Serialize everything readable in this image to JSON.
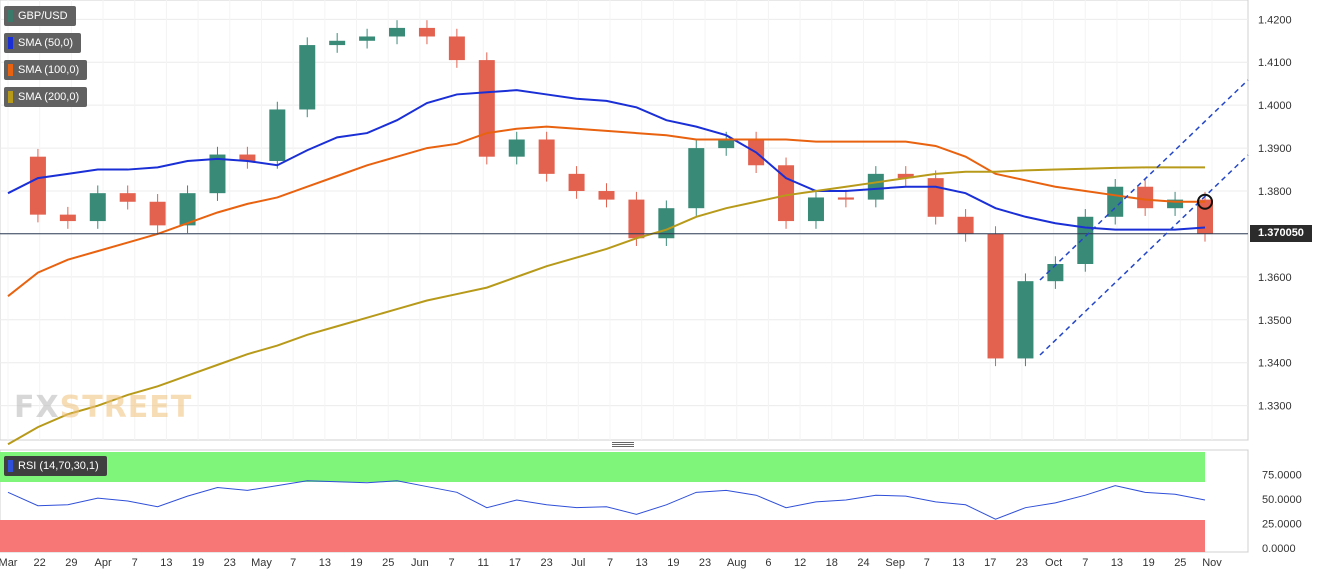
{
  "legends": [
    {
      "label": "GBP/USD",
      "color": "#3a7a6a"
    },
    {
      "label": "SMA (50,0)",
      "color": "#1a2fd6"
    },
    {
      "label": "SMA (100,0)",
      "color": "#e8620f"
    },
    {
      "label": "SMA (200,0)",
      "color": "#b89a1a"
    }
  ],
  "rsi_label": "RSI (14,70,30,1)",
  "logo": {
    "part1": "FX",
    "part2": "STREET"
  },
  "current_price": "1.370050",
  "colors": {
    "up": "#3a8a78",
    "down": "#e2614f",
    "sma50": "#1a2fd6",
    "sma100": "#e8620f",
    "sma200": "#b89a1a",
    "rsi_line": "#2f4fd8",
    "overbought_zone": "#7ff57a",
    "oversold_zone": "#f77777"
  },
  "chart_data": {
    "type": "line",
    "title": "GBP/USD",
    "y_ticks": [
      "1.4200",
      "1.4100",
      "1.4000",
      "1.3900",
      "1.3800",
      "1.3700",
      "1.3600",
      "1.3500",
      "1.3400",
      "1.3300"
    ],
    "x_ticks": [
      "Mar",
      "22",
      "29",
      "Apr",
      "7",
      "13",
      "19",
      "23",
      "May",
      "7",
      "13",
      "19",
      "25",
      "Jun",
      "7",
      "11",
      "17",
      "23",
      "Jul",
      "7",
      "13",
      "19",
      "23",
      "Aug",
      "6",
      "12",
      "18",
      "24",
      "Sep",
      "7",
      "13",
      "17",
      "23",
      "Oct",
      "7",
      "13",
      "19",
      "25",
      "Nov"
    ],
    "ylim": [
      1.322,
      1.4245
    ],
    "x": [
      "Mar 16",
      "Mar 22",
      "Mar 29",
      "Apr 1",
      "Apr 7",
      "Apr 13",
      "Apr 19",
      "Apr 23",
      "Apr 30",
      "May 7",
      "May 13",
      "May 19",
      "May 25",
      "Jun 1",
      "Jun 7",
      "Jun 11",
      "Jun 17",
      "Jun 23",
      "Jul 1",
      "Jul 7",
      "Jul 13",
      "Jul 19",
      "Jul 23",
      "Aug 2",
      "Aug 6",
      "Aug 12",
      "Aug 18",
      "Aug 24",
      "Sep 1",
      "Sep 7",
      "Sep 13",
      "Sep 17",
      "Sep 23",
      "Sep 29",
      "Oct 1",
      "Oct 7",
      "Oct 13",
      "Oct 19",
      "Oct 25",
      "Oct 28",
      "Oct 29"
    ],
    "close": [
      1.388,
      1.3745,
      1.373,
      1.3795,
      1.3775,
      1.372,
      1.3795,
      1.3885,
      1.387,
      1.399,
      1.414,
      1.415,
      1.416,
      1.418,
      1.416,
      1.4105,
      1.388,
      1.392,
      1.384,
      1.38,
      1.378,
      1.369,
      1.376,
      1.39,
      1.392,
      1.386,
      1.373,
      1.3785,
      1.378,
      1.384,
      1.383,
      1.374,
      1.37,
      1.341,
      1.359,
      1.363,
      1.374,
      1.381,
      1.376,
      1.378,
      1.37
    ],
    "series": [
      {
        "name": "SMA (50,0)",
        "values": [
          1.3795,
          1.383,
          1.384,
          1.385,
          1.385,
          1.3855,
          1.387,
          1.3875,
          1.387,
          1.386,
          1.3895,
          1.3925,
          1.3935,
          1.3965,
          1.4005,
          1.4025,
          1.403,
          1.4035,
          1.4025,
          1.4015,
          1.401,
          1.3995,
          1.3965,
          1.395,
          1.393,
          1.389,
          1.383,
          1.38,
          1.38,
          1.3805,
          1.381,
          1.381,
          1.3795,
          1.376,
          1.374,
          1.3725,
          1.3715,
          1.371,
          1.371,
          1.371,
          1.3715
        ]
      },
      {
        "name": "SMA (100,0)",
        "values": [
          1.3555,
          1.361,
          1.364,
          1.366,
          1.368,
          1.37,
          1.3725,
          1.375,
          1.377,
          1.3785,
          1.381,
          1.3835,
          1.386,
          1.388,
          1.39,
          1.391,
          1.3935,
          1.3945,
          1.395,
          1.3945,
          1.394,
          1.3935,
          1.393,
          1.392,
          1.392,
          1.392,
          1.392,
          1.3915,
          1.3915,
          1.3915,
          1.3915,
          1.3905,
          1.388,
          1.384,
          1.3825,
          1.381,
          1.38,
          1.379,
          1.378,
          1.3775,
          1.3775
        ]
      },
      {
        "name": "SMA (200,0)",
        "values": [
          1.321,
          1.325,
          1.328,
          1.33,
          1.3325,
          1.3345,
          1.337,
          1.3395,
          1.342,
          1.344,
          1.3465,
          1.3485,
          1.3505,
          1.3525,
          1.3545,
          1.356,
          1.3575,
          1.36,
          1.3625,
          1.3645,
          1.3665,
          1.369,
          1.371,
          1.374,
          1.376,
          1.3775,
          1.379,
          1.38,
          1.381,
          1.382,
          1.383,
          1.384,
          1.3845,
          1.3845,
          1.3848,
          1.385,
          1.3852,
          1.3854,
          1.3855,
          1.3855,
          1.3855
        ]
      }
    ],
    "rsi": {
      "y_ticks": [
        "75.0000",
        "50.0000",
        "25.0000",
        "0.0000"
      ],
      "ylim": [
        0,
        100
      ],
      "levels": [
        70,
        30
      ],
      "values": [
        58,
        44,
        45,
        52,
        49,
        43,
        54,
        63,
        60,
        65,
        70,
        69,
        68,
        70,
        64,
        58,
        42,
        50,
        45,
        42,
        43,
        35,
        45,
        58,
        60,
        55,
        42,
        48,
        50,
        55,
        54,
        48,
        45,
        30,
        42,
        47,
        55,
        65,
        58,
        56,
        50
      ]
    }
  }
}
